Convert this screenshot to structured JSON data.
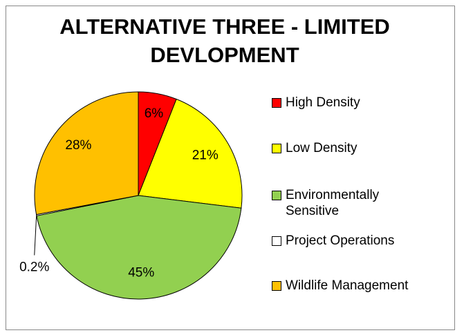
{
  "chart_data": {
    "type": "pie",
    "title": "ALTERNATIVE THREE - LIMITED DEVLOPMENT",
    "categories": [
      "High Density",
      "Low Density",
      "Environmentally Sensitive",
      "Project Operations",
      "Wildlife Management"
    ],
    "values": [
      6,
      21,
      45,
      0.2,
      28
    ],
    "value_labels": [
      "6%",
      "21%",
      "45%",
      "0.2%",
      "28%"
    ],
    "colors": [
      "#ff0000",
      "#ffff00",
      "#92d050",
      "#ffffff",
      "#ffc000"
    ],
    "legend": "right"
  }
}
